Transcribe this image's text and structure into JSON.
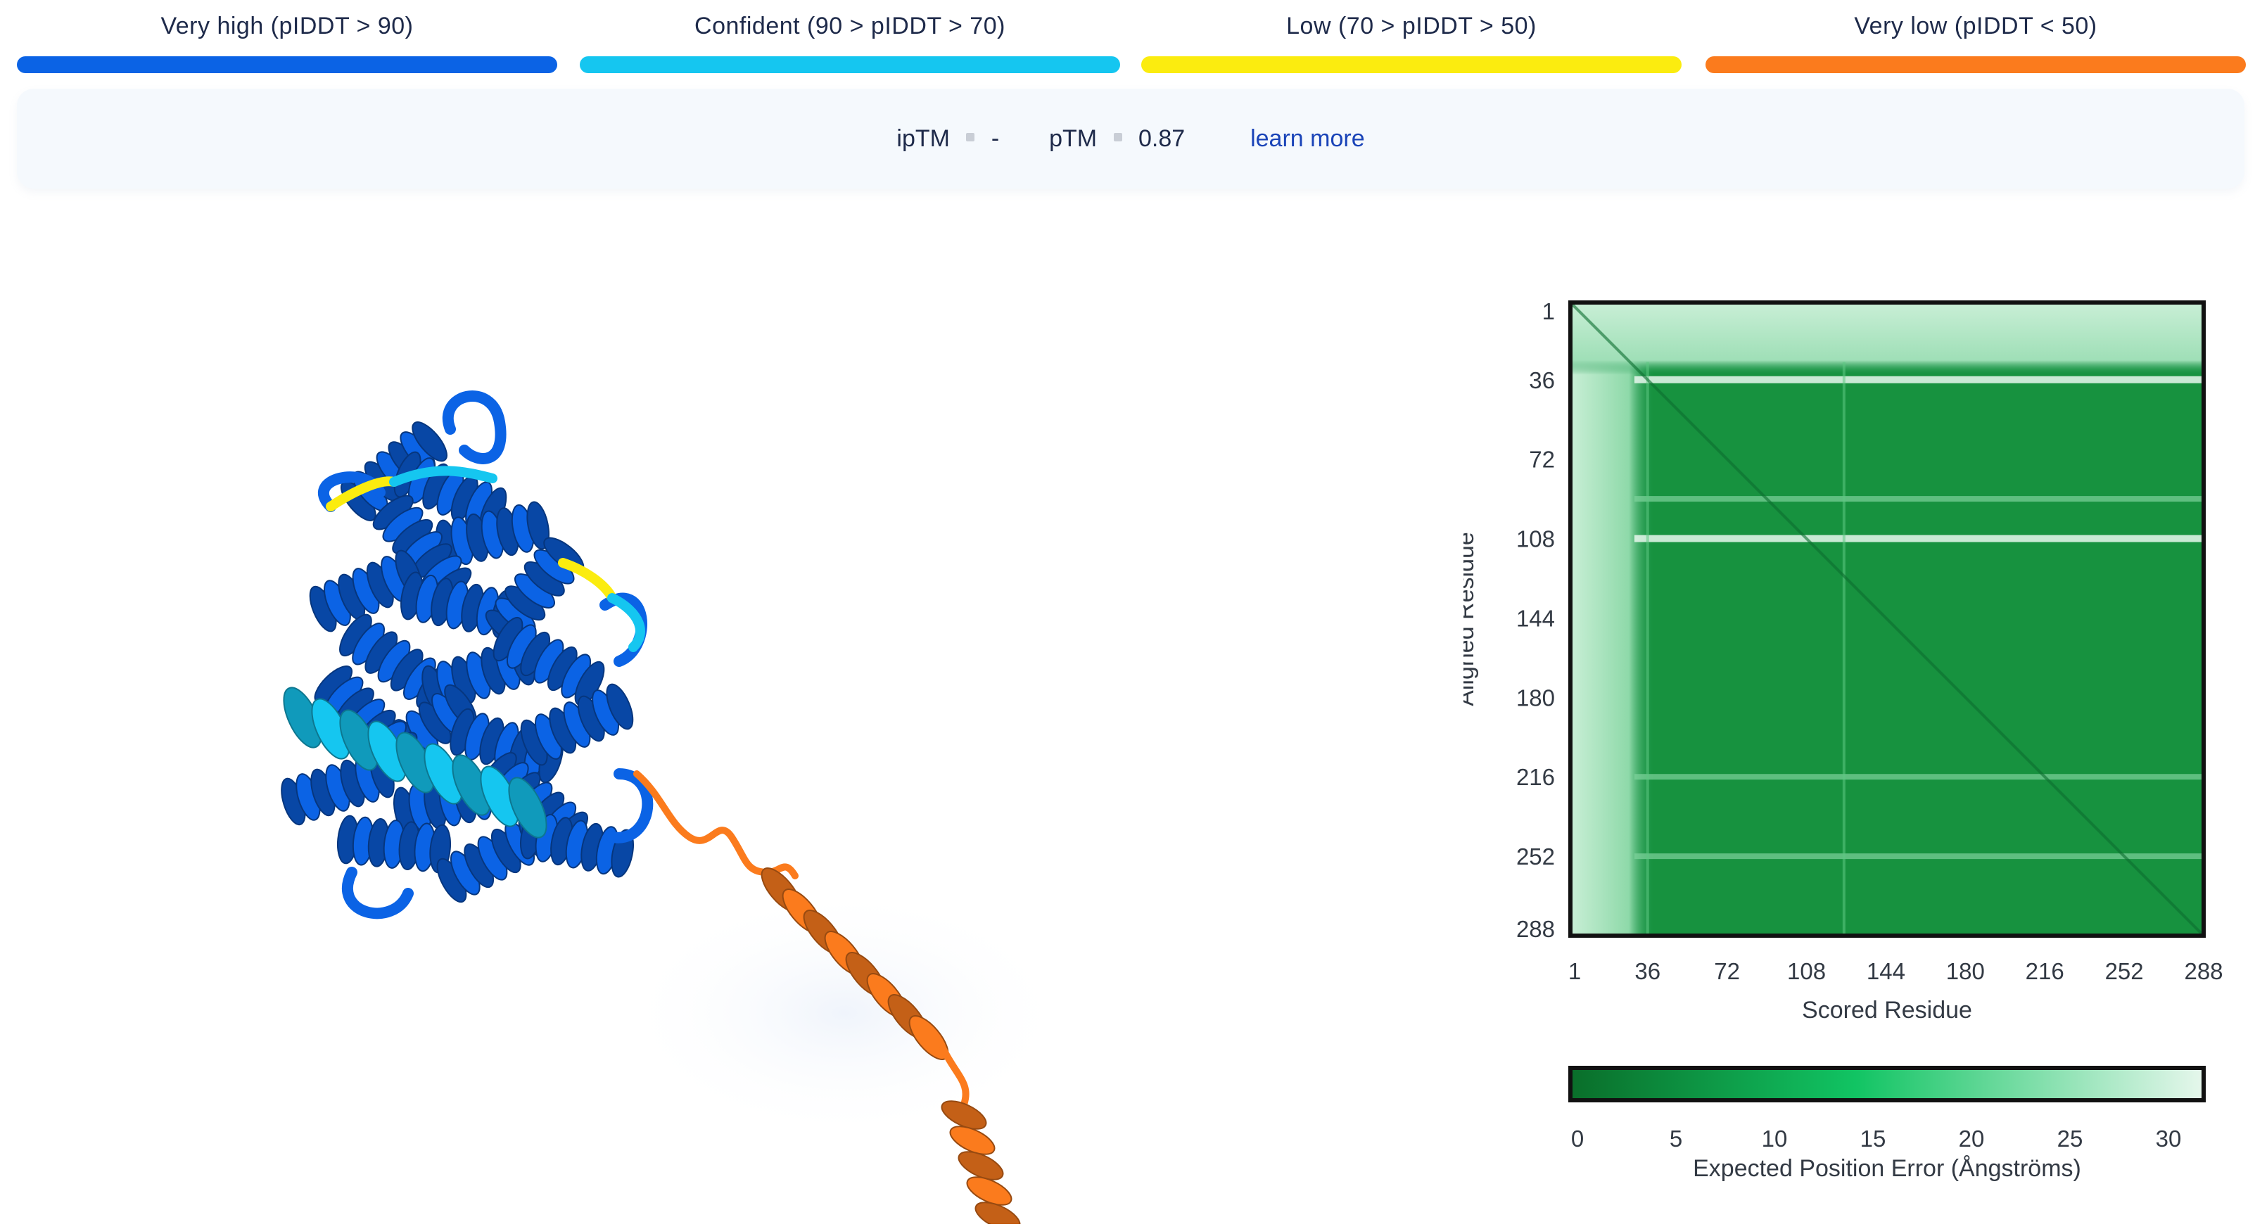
{
  "confidence_legend": [
    {
      "label": "Very high (pIDDT > 90)",
      "color": "#0b63e5"
    },
    {
      "label": "Confident (90 > pIDDT > 70)",
      "color": "#15c6f0"
    },
    {
      "label": "Low (70 > pIDDT > 50)",
      "color": "#fbec0f"
    },
    {
      "label": "Very low (pIDDT < 50)",
      "color": "#fb7b1d"
    }
  ],
  "metrics": {
    "iptm_label": "ipTM",
    "iptm_value": "-",
    "ptm_label": "pTM",
    "ptm_value": "0.87",
    "learn_more": "learn more"
  },
  "structure_colors": {
    "very_high": "#0b63e5",
    "confident": "#15c6f0",
    "low": "#fbec0f",
    "very_low": "#fb7b1d"
  },
  "chart_data": {
    "type": "heatmap",
    "xlabel": "Scored Residue",
    "ylabel": "Aligned Residue",
    "x_ticks": [
      "1",
      "36",
      "72",
      "108",
      "144",
      "180",
      "216",
      "252",
      "288"
    ],
    "y_ticks": [
      "1",
      "36",
      "72",
      "108",
      "144",
      "180",
      "216",
      "252",
      "288"
    ],
    "n_residues": 288,
    "colorbar": {
      "label": "Expected Position Error (Ångströms)",
      "ticks": [
        "0",
        "5",
        "10",
        "15",
        "20",
        "25",
        "30"
      ],
      "range": [
        0,
        30
      ],
      "colors": [
        "#0a6e2a",
        "#11c463",
        "#e6f7ec"
      ]
    },
    "low_confidence_rows": [
      36,
      108
    ],
    "moderate_rows": [
      90,
      216,
      252
    ],
    "low_confidence_cols_band": [
      1,
      30
    ],
    "low_confidence_rows_band": [
      1,
      28
    ]
  }
}
